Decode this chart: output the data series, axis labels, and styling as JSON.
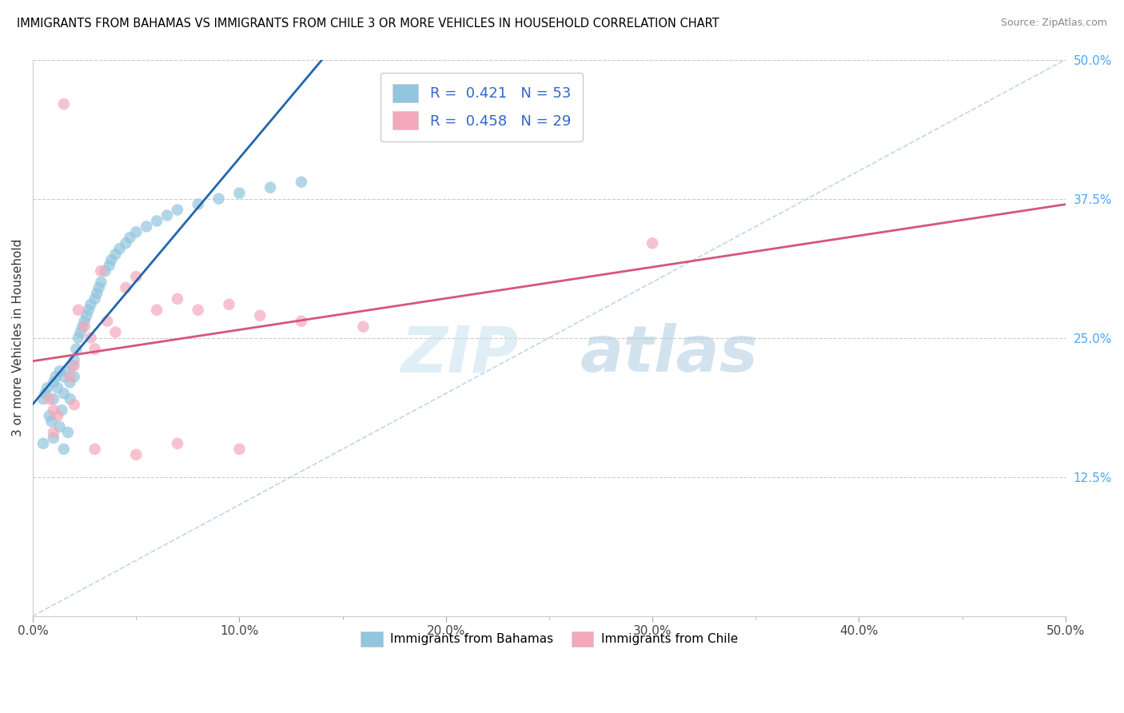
{
  "title": "IMMIGRANTS FROM BAHAMAS VS IMMIGRANTS FROM CHILE 3 OR MORE VEHICLES IN HOUSEHOLD CORRELATION CHART",
  "source": "Source: ZipAtlas.com",
  "ylabel": "3 or more Vehicles in Household",
  "legend_label_1": "Immigrants from Bahamas",
  "legend_label_2": "Immigrants from Chile",
  "R1": 0.421,
  "N1": 53,
  "R2": 0.458,
  "N2": 29,
  "color1": "#92c5de",
  "color2": "#f4a9bb",
  "line_color1": "#2166ac",
  "line_color2": "#d6567a",
  "diag_color": "#aecde8",
  "xlim": [
    0.0,
    0.5
  ],
  "ylim": [
    0.0,
    0.5
  ],
  "xticks": [
    0.0,
    0.1,
    0.2,
    0.3,
    0.4,
    0.5
  ],
  "yticks_right": [
    0.125,
    0.25,
    0.375,
    0.5
  ],
  "ytick_labels_right": [
    "12.5%",
    "25.0%",
    "37.5%",
    "50.0%"
  ],
  "xtick_labels": [
    "0.0%",
    "10.0%",
    "20.0%",
    "30.0%",
    "40.0%",
    "50.0%"
  ],
  "bahamas_x": [
    0.005,
    0.006,
    0.007,
    0.008,
    0.009,
    0.01,
    0.01,
    0.011,
    0.012,
    0.013,
    0.013,
    0.014,
    0.015,
    0.015,
    0.016,
    0.017,
    0.018,
    0.018,
    0.019,
    0.02,
    0.02,
    0.021,
    0.022,
    0.023,
    0.024,
    0.025,
    0.026,
    0.027,
    0.028,
    0.03,
    0.031,
    0.032,
    0.033,
    0.035,
    0.037,
    0.038,
    0.04,
    0.042,
    0.045,
    0.047,
    0.05,
    0.055,
    0.06,
    0.065,
    0.07,
    0.08,
    0.09,
    0.1,
    0.115,
    0.13,
    0.005,
    0.01,
    0.015
  ],
  "bahamas_y": [
    0.195,
    0.2,
    0.205,
    0.18,
    0.175,
    0.21,
    0.195,
    0.215,
    0.205,
    0.22,
    0.17,
    0.185,
    0.215,
    0.2,
    0.22,
    0.165,
    0.195,
    0.21,
    0.225,
    0.215,
    0.23,
    0.24,
    0.25,
    0.255,
    0.26,
    0.265,
    0.27,
    0.275,
    0.28,
    0.285,
    0.29,
    0.295,
    0.3,
    0.31,
    0.315,
    0.32,
    0.325,
    0.33,
    0.335,
    0.34,
    0.345,
    0.35,
    0.355,
    0.36,
    0.365,
    0.37,
    0.375,
    0.38,
    0.385,
    0.39,
    0.155,
    0.16,
    0.15
  ],
  "chile_x": [
    0.008,
    0.01,
    0.012,
    0.015,
    0.018,
    0.02,
    0.022,
    0.025,
    0.028,
    0.03,
    0.033,
    0.036,
    0.04,
    0.045,
    0.05,
    0.06,
    0.07,
    0.08,
    0.095,
    0.11,
    0.13,
    0.16,
    0.01,
    0.02,
    0.03,
    0.05,
    0.07,
    0.3,
    0.1
  ],
  "chile_y": [
    0.195,
    0.185,
    0.18,
    0.46,
    0.215,
    0.225,
    0.275,
    0.26,
    0.25,
    0.24,
    0.31,
    0.265,
    0.255,
    0.295,
    0.305,
    0.275,
    0.285,
    0.275,
    0.28,
    0.27,
    0.265,
    0.26,
    0.165,
    0.19,
    0.15,
    0.145,
    0.155,
    0.335,
    0.15
  ]
}
